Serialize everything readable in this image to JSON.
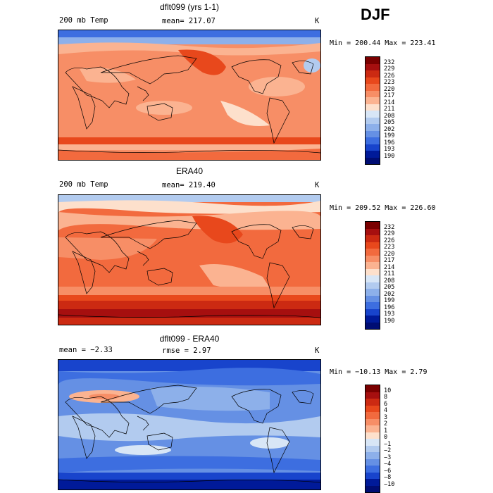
{
  "season": "DJF",
  "panels": [
    {
      "title": "dflt099 (yrs 1-1)",
      "left_label": "200 mb Temp",
      "center_label": "mean= 217.07",
      "units": "K",
      "minmax": "Min = 200.44 Max = 223.41",
      "legend": [
        "232",
        "229",
        "226",
        "223",
        "220",
        "217",
        "214",
        "211",
        "208",
        "205",
        "202",
        "199",
        "196",
        "193",
        "190"
      ]
    },
    {
      "title": "ERA40",
      "left_label": "200 mb Temp",
      "center_label": "mean= 219.40",
      "units": "K",
      "minmax": "Min = 209.52 Max = 226.60",
      "legend": [
        "232",
        "229",
        "226",
        "223",
        "220",
        "217",
        "214",
        "211",
        "208",
        "205",
        "202",
        "199",
        "196",
        "193",
        "190"
      ]
    },
    {
      "title": "dflt099 - ERA40",
      "left_label": "mean =  −2.33",
      "center_label": "rmse =   2.97",
      "units": "K",
      "minmax": "Min = −10.13 Max =   2.79",
      "legend": [
        "10",
        "8",
        "6",
        "4",
        "3",
        "2",
        "1",
        "0",
        "−1",
        "−2",
        "−3",
        "−4",
        "−6",
        "−8",
        "−10"
      ]
    }
  ],
  "palette_temp": [
    "#7a0000",
    "#a60f0f",
    "#cc2a12",
    "#e8481c",
    "#f26a3e",
    "#f78e66",
    "#fbb391",
    "#fde0cc",
    "#d8e6f6",
    "#b2cbef",
    "#8db0ea",
    "#6590e4",
    "#3d6ee0",
    "#1844cc",
    "#001a99",
    "#000d73"
  ],
  "palette_diff": [
    "#7a0000",
    "#a60f0f",
    "#cc2a12",
    "#e8481c",
    "#f26a3e",
    "#f78e66",
    "#fbb391",
    "#fde0cc",
    "#d8e6f6",
    "#b2cbef",
    "#8db0ea",
    "#6590e4",
    "#3d6ee0",
    "#1844cc",
    "#001a99",
    "#000d73"
  ]
}
